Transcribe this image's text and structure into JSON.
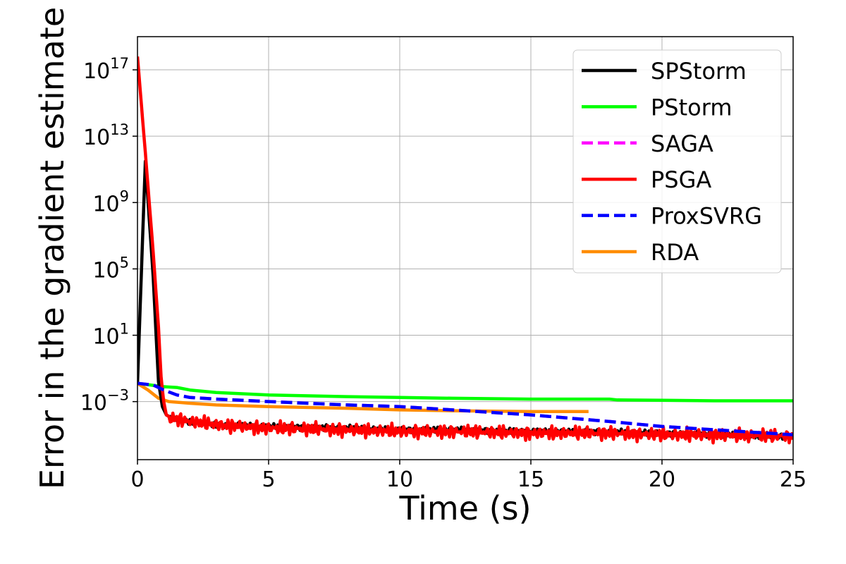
{
  "chart_data": {
    "type": "line",
    "title": "",
    "xlabel": "Time (s)",
    "ylabel": "Error in the gradient estimate",
    "yscale": "log",
    "xlim": [
      0,
      25
    ],
    "ylog_range": [
      -6.5,
      19
    ],
    "xticks": [
      0,
      5,
      10,
      15,
      20,
      25
    ],
    "yticks": [
      {
        "base": "10",
        "exp": "17",
        "value": 17
      },
      {
        "base": "10",
        "exp": "13",
        "value": 13
      },
      {
        "base": "10",
        "exp": "9",
        "value": 9
      },
      {
        "base": "10",
        "exp": "5",
        "value": 5
      },
      {
        "base": "10",
        "exp": "1",
        "value": 1
      },
      {
        "base": "10",
        "exp": "−3",
        "value": -3
      }
    ],
    "grid": true,
    "legend_position": "top-right",
    "series": [
      {
        "name": "SPStorm",
        "color": "#000000",
        "dash": "solid",
        "x": [
          0,
          0.3,
          0.6,
          0.8,
          0.95,
          1.1,
          1.3,
          2,
          3,
          5,
          8,
          10,
          12,
          15,
          17,
          20,
          22,
          25
        ],
        "log10_y": [
          -1.9,
          11.5,
          4.5,
          -1.8,
          -3.3,
          -3.8,
          -4.0,
          -4.2,
          -4.4,
          -4.5,
          -4.6,
          -4.7,
          -4.7,
          -4.8,
          -4.8,
          -4.9,
          -5.0,
          -5.1
        ],
        "noise": 0.2
      },
      {
        "name": "PStorm",
        "color": "#00ff00",
        "dash": "solid",
        "x": [
          0,
          0.5,
          1,
          1.5,
          2,
          3,
          5,
          8,
          10,
          12,
          15,
          18,
          18.3,
          20,
          22,
          25
        ],
        "log10_y": [
          -1.9,
          -2.0,
          -2.1,
          -2.15,
          -2.3,
          -2.45,
          -2.6,
          -2.7,
          -2.75,
          -2.8,
          -2.85,
          -2.85,
          -2.9,
          -2.92,
          -2.95,
          -2.95
        ],
        "noise": 0
      },
      {
        "name": "SAGA",
        "color": "#ff00ff",
        "dash": "dashed",
        "x": [
          0,
          0.6,
          1,
          1.5,
          2,
          3,
          5,
          8,
          10,
          12,
          15,
          18,
          20,
          22,
          25
        ],
        "log10_y": [
          -1.9,
          -2.0,
          -2.3,
          -2.6,
          -2.75,
          -2.85,
          -3.0,
          -3.2,
          -3.3,
          -3.5,
          -3.8,
          -4.2,
          -4.5,
          -4.7,
          -5.0
        ],
        "noise": 0
      },
      {
        "name": "PSGA",
        "color": "#ff0000",
        "dash": "solid",
        "x": [
          0,
          0.3,
          0.6,
          0.8,
          0.9,
          1.0,
          1.1,
          1.3,
          2,
          3,
          5,
          8,
          10,
          12,
          15,
          18,
          20,
          22,
          25
        ],
        "log10_y": [
          17.8,
          12,
          6,
          1.5,
          -1.5,
          -3.0,
          -3.8,
          -4.0,
          -4.2,
          -4.4,
          -4.6,
          -4.7,
          -4.8,
          -4.8,
          -4.9,
          -4.9,
          -5.0,
          -5.0,
          -5.1
        ],
        "noise": 0.5
      },
      {
        "name": "ProxSVRG",
        "color": "#0000ff",
        "dash": "dashed",
        "x": [
          0,
          0.6,
          1,
          1.5,
          2,
          3,
          5,
          8,
          10,
          12,
          15,
          18,
          20,
          22,
          25
        ],
        "log10_y": [
          -1.9,
          -2.0,
          -2.3,
          -2.6,
          -2.75,
          -2.85,
          -3.0,
          -3.2,
          -3.3,
          -3.5,
          -3.8,
          -4.2,
          -4.5,
          -4.7,
          -5.0
        ],
        "noise": 0
      },
      {
        "name": "RDA",
        "color": "#ff8c00",
        "dash": "solid",
        "x": [
          0,
          0.4,
          0.8,
          1.2,
          2,
          3,
          5,
          8,
          10,
          12,
          15,
          17.2
        ],
        "log10_y": [
          -1.9,
          -2.3,
          -2.8,
          -3.0,
          -3.1,
          -3.2,
          -3.3,
          -3.4,
          -3.5,
          -3.55,
          -3.6,
          -3.6
        ],
        "noise": 0
      }
    ]
  }
}
